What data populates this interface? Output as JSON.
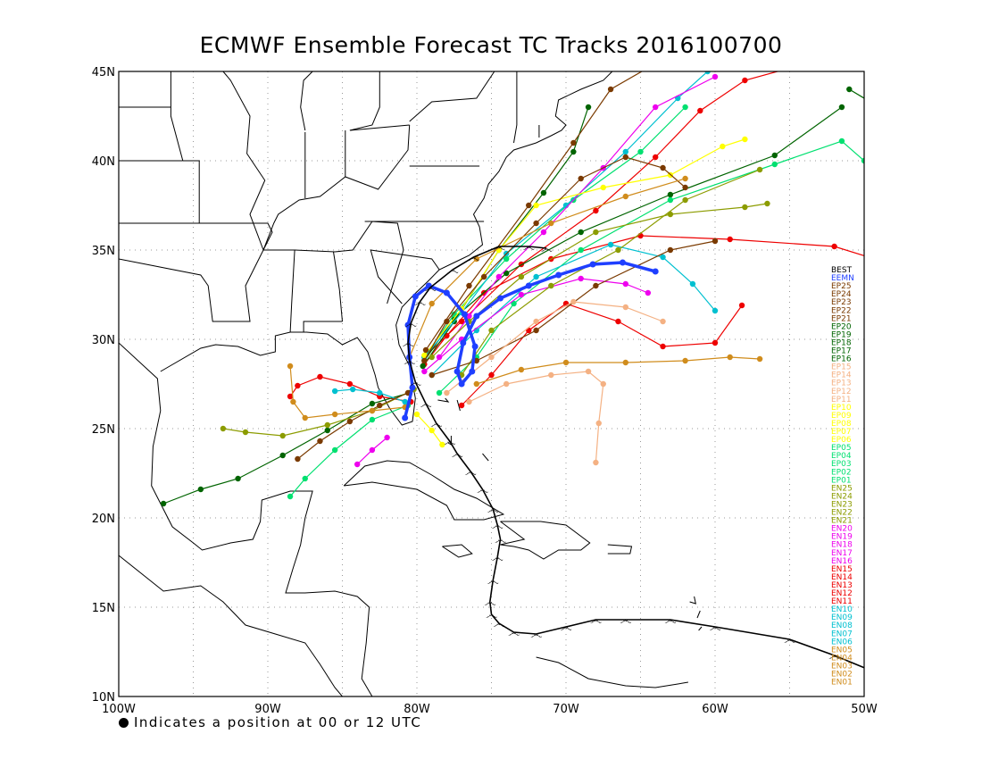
{
  "title": "ECMWF Ensemble Forecast TC Tracks 2016100700",
  "footnote": "Indicates a position at 00 or 12 UTC",
  "map": {
    "lon_range": [
      -100,
      -50
    ],
    "lat_range": [
      10,
      45
    ],
    "lat_labels": [
      "45N",
      "40N",
      "35N",
      "30N",
      "25N",
      "20N",
      "15N",
      "10N"
    ],
    "lon_labels": [
      "100W",
      "90W",
      "80W",
      "70W",
      "60W",
      "50W"
    ]
  },
  "legend": [
    {
      "label": "BEST",
      "color": "#000000"
    },
    {
      "label": "EEMN",
      "color": "#1f3fff"
    },
    {
      "label": "EP25",
      "color": "#7a3a00"
    },
    {
      "label": "EP24",
      "color": "#7a3a00"
    },
    {
      "label": "EP23",
      "color": "#7a3a00"
    },
    {
      "label": "EP22",
      "color": "#7a3a00"
    },
    {
      "label": "EP21",
      "color": "#7a3a00"
    },
    {
      "label": "EP20",
      "color": "#006400"
    },
    {
      "label": "EP19",
      "color": "#006400"
    },
    {
      "label": "EP18",
      "color": "#006400"
    },
    {
      "label": "EP17",
      "color": "#006400"
    },
    {
      "label": "EP16",
      "color": "#006400"
    },
    {
      "label": "EP15",
      "color": "#f4b183"
    },
    {
      "label": "EP14",
      "color": "#f4b183"
    },
    {
      "label": "EP13",
      "color": "#f4b183"
    },
    {
      "label": "EP12",
      "color": "#f4b183"
    },
    {
      "label": "EP11",
      "color": "#f4b183"
    },
    {
      "label": "EP10",
      "color": "#ffff00"
    },
    {
      "label": "EP09",
      "color": "#ffff00"
    },
    {
      "label": "EP08",
      "color": "#ffff00"
    },
    {
      "label": "EP07",
      "color": "#ffff00"
    },
    {
      "label": "EP06",
      "color": "#ffff00"
    },
    {
      "label": "EP05",
      "color": "#00e070"
    },
    {
      "label": "EP04",
      "color": "#00e070"
    },
    {
      "label": "EP03",
      "color": "#00e070"
    },
    {
      "label": "EP02",
      "color": "#00e070"
    },
    {
      "label": "EP01",
      "color": "#00e070"
    },
    {
      "label": "EN25",
      "color": "#8c9c00"
    },
    {
      "label": "EN24",
      "color": "#8c9c00"
    },
    {
      "label": "EN23",
      "color": "#8c9c00"
    },
    {
      "label": "EN22",
      "color": "#8c9c00"
    },
    {
      "label": "EN21",
      "color": "#8c9c00"
    },
    {
      "label": "EN20",
      "color": "#ee00ee"
    },
    {
      "label": "EN19",
      "color": "#ee00ee"
    },
    {
      "label": "EN18",
      "color": "#ee00ee"
    },
    {
      "label": "EN17",
      "color": "#ee00ee"
    },
    {
      "label": "EN16",
      "color": "#ee00ee"
    },
    {
      "label": "EN15",
      "color": "#ee0000"
    },
    {
      "label": "EN14",
      "color": "#ee0000"
    },
    {
      "label": "EN13",
      "color": "#ee0000"
    },
    {
      "label": "EN12",
      "color": "#ee0000"
    },
    {
      "label": "EN11",
      "color": "#ee0000"
    },
    {
      "label": "EN10",
      "color": "#00c0d0"
    },
    {
      "label": "EN09",
      "color": "#00c0d0"
    },
    {
      "label": "EN08",
      "color": "#00c0d0"
    },
    {
      "label": "EN07",
      "color": "#00c0d0"
    },
    {
      "label": "EN06",
      "color": "#00c0d0"
    },
    {
      "label": "EN05",
      "color": "#d08c1c"
    },
    {
      "label": "EN04",
      "color": "#d08c1c"
    },
    {
      "label": "EN03",
      "color": "#d08c1c"
    },
    {
      "label": "EN02",
      "color": "#d08c1c"
    },
    {
      "label": "EN01",
      "color": "#d08c1c"
    }
  ],
  "best_track": [
    [
      -48.5,
      11.1
    ],
    [
      -52,
      12.3
    ],
    [
      -55,
      13.2
    ],
    [
      -60,
      13.9
    ],
    [
      -63,
      14.3
    ],
    [
      -66,
      14.3
    ],
    [
      -68,
      14.3
    ],
    [
      -70,
      13.9
    ],
    [
      -72,
      13.5
    ],
    [
      -73.5,
      13.6
    ],
    [
      -74.5,
      14.1
    ],
    [
      -75,
      14.6
    ],
    [
      -75.1,
      15.3
    ],
    [
      -74.9,
      16.5
    ],
    [
      -74.6,
      17.8
    ],
    [
      -74.4,
      18.8
    ],
    [
      -74.6,
      19.6
    ],
    [
      -74.9,
      20.5
    ],
    [
      -75.6,
      21.6
    ],
    [
      -76.4,
      22.6
    ],
    [
      -77.3,
      23.6
    ],
    [
      -77.8,
      24.3
    ],
    [
      -78.7,
      25.3
    ],
    [
      -79.4,
      26.4
    ],
    [
      -80.1,
      27.6
    ],
    [
      -80.5,
      28.8
    ],
    [
      -80.6,
      29.8
    ],
    [
      -80.4,
      30.9
    ],
    [
      -79.8,
      32.1
    ],
    [
      -79.1,
      32.9
    ],
    [
      -77.6,
      33.9
    ],
    [
      -76.2,
      34.6
    ],
    [
      -74.5,
      35.2
    ],
    [
      -72.5,
      35.2
    ],
    [
      -71.3,
      35.1
    ]
  ],
  "mean_track": [
    [
      -80.8,
      25.6
    ],
    [
      -80.3,
      27.3
    ],
    [
      -80.5,
      29.0
    ],
    [
      -80.6,
      30.8
    ],
    [
      -80.1,
      32.4
    ],
    [
      -79.2,
      33.0
    ],
    [
      -78.0,
      32.6
    ],
    [
      -76.8,
      31.4
    ],
    [
      -76.1,
      29.6
    ],
    [
      -76.3,
      28.2
    ],
    [
      -77.0,
      27.5
    ],
    [
      -77.3,
      28.2
    ],
    [
      -76.9,
      29.8
    ],
    [
      -76.0,
      31.3
    ],
    [
      -74.4,
      32.3
    ],
    [
      -72.5,
      33.0
    ],
    [
      -70.5,
      33.6
    ],
    [
      -68.2,
      34.2
    ],
    [
      -66.2,
      34.3
    ],
    [
      -64.0,
      33.8
    ]
  ],
  "ensemble_tracks": [
    {
      "color": "#ee0000",
      "points": [
        [
          -79.5,
          28.6
        ],
        [
          -78,
          30.2
        ],
        [
          -75.5,
          32.6
        ],
        [
          -71,
          34.5
        ],
        [
          -65,
          35.8
        ],
        [
          -59,
          35.6
        ],
        [
          -52,
          35.2
        ],
        [
          -47,
          33.9
        ]
      ]
    },
    {
      "color": "#ee0000",
      "points": [
        [
          -79.5,
          29
        ],
        [
          -77,
          31
        ],
        [
          -73,
          34.2
        ],
        [
          -68,
          37.2
        ],
        [
          -64,
          40.2
        ],
        [
          -61,
          42.8
        ],
        [
          -58,
          44.5
        ],
        [
          -54.5,
          45.3
        ]
      ]
    },
    {
      "color": "#ee0000",
      "points": [
        [
          -80.4,
          26.5
        ],
        [
          -82.5,
          26.8
        ],
        [
          -84.5,
          27.5
        ],
        [
          -86.5,
          27.9
        ],
        [
          -88,
          27.4
        ],
        [
          -88.5,
          26.8
        ]
      ]
    },
    {
      "color": "#ee0000",
      "points": [
        [
          -77,
          26.3
        ],
        [
          -75,
          28
        ],
        [
          -72.5,
          30.5
        ],
        [
          -70,
          32
        ],
        [
          -66.5,
          31
        ],
        [
          -63.5,
          29.6
        ],
        [
          -60,
          29.8
        ],
        [
          -58.2,
          31.9
        ]
      ]
    },
    {
      "color": "#006400",
      "points": [
        [
          -79.5,
          28.8
        ],
        [
          -77.5,
          31.2
        ],
        [
          -74,
          33.7
        ],
        [
          -69,
          36
        ],
        [
          -63,
          38.1
        ],
        [
          -56,
          40.3
        ],
        [
          -51.5,
          43
        ]
      ]
    },
    {
      "color": "#006400",
      "points": [
        [
          -80.5,
          27
        ],
        [
          -83,
          26.4
        ],
        [
          -86,
          24.9
        ],
        [
          -89,
          23.5
        ],
        [
          -92,
          22.2
        ],
        [
          -94.5,
          21.6
        ],
        [
          -97,
          20.8
        ]
      ]
    },
    {
      "color": "#006400",
      "points": [
        [
          -79.6,
          28.5
        ],
        [
          -77.5,
          31
        ],
        [
          -74.5,
          35
        ],
        [
          -71.5,
          38.2
        ],
        [
          -69.5,
          40.5
        ],
        [
          -68.5,
          43
        ]
      ]
    },
    {
      "color": "#006400",
      "points": [
        [
          -51,
          44
        ],
        [
          -49,
          43
        ]
      ]
    },
    {
      "color": "#00e070",
      "points": [
        [
          -79.5,
          29
        ],
        [
          -77.5,
          31.4
        ],
        [
          -74,
          34.5
        ],
        [
          -69.5,
          37.8
        ],
        [
          -65,
          40.5
        ],
        [
          -62,
          43
        ]
      ]
    },
    {
      "color": "#00e070",
      "points": [
        [
          -78.5,
          27
        ],
        [
          -76,
          29
        ],
        [
          -73.5,
          32
        ],
        [
          -69,
          35
        ],
        [
          -63,
          37.8
        ],
        [
          -56,
          39.8
        ],
        [
          -51.5,
          41.1
        ],
        [
          -50,
          40
        ],
        [
          -48.5,
          39.2
        ]
      ]
    },
    {
      "color": "#00e070",
      "points": [
        [
          -80.6,
          26.3
        ],
        [
          -83,
          25.5
        ],
        [
          -85.5,
          23.8
        ],
        [
          -87.5,
          22.2
        ],
        [
          -88.5,
          21.2
        ]
      ]
    },
    {
      "color": "#00c0d0",
      "points": [
        [
          -79.5,
          29
        ],
        [
          -77,
          31.5
        ],
        [
          -74,
          34.8
        ],
        [
          -70,
          37.5
        ],
        [
          -66,
          40.5
        ],
        [
          -62.5,
          43.5
        ],
        [
          -60.5,
          45
        ]
      ]
    },
    {
      "color": "#00c0d0",
      "points": [
        [
          -79,
          28
        ],
        [
          -76,
          30.5
        ],
        [
          -72,
          33.5
        ],
        [
          -67,
          35.3
        ],
        [
          -63.5,
          34.6
        ],
        [
          -61.5,
          33.1
        ],
        [
          -60,
          31.6
        ]
      ]
    },
    {
      "color": "#00c0d0",
      "points": [
        [
          -80.8,
          26.5
        ],
        [
          -82.5,
          27
        ],
        [
          -84.3,
          27.2
        ],
        [
          -85.5,
          27.1
        ]
      ]
    },
    {
      "color": "#ee00ee",
      "points": [
        [
          -78.5,
          29
        ],
        [
          -76.5,
          31.3
        ],
        [
          -74.5,
          33.5
        ],
        [
          -71.5,
          36
        ],
        [
          -67.5,
          39.6
        ],
        [
          -64,
          43
        ],
        [
          -60,
          44.7
        ]
      ]
    },
    {
      "color": "#ee00ee",
      "points": [
        [
          -79.5,
          28.2
        ],
        [
          -77,
          30
        ],
        [
          -73,
          32.5
        ],
        [
          -69,
          33.4
        ],
        [
          -66,
          33.1
        ],
        [
          -64.5,
          32.6
        ]
      ]
    },
    {
      "color": "#ee00ee",
      "points": [
        [
          -82,
          24.5
        ],
        [
          -83,
          23.8
        ],
        [
          -84,
          23
        ]
      ]
    },
    {
      "color": "#ffff00",
      "points": [
        [
          -79.5,
          29.1
        ],
        [
          -77,
          31.7
        ],
        [
          -74.5,
          35
        ],
        [
          -72,
          37.5
        ],
        [
          -67.5,
          38.5
        ],
        [
          -63,
          39.2
        ],
        [
          -59.5,
          40.8
        ],
        [
          -58,
          41.2
        ]
      ]
    },
    {
      "color": "#ffff00",
      "points": [
        [
          -80,
          25.8
        ],
        [
          -79,
          24.9
        ],
        [
          -78.3,
          24.1
        ]
      ]
    },
    {
      "color": "#8c9c00",
      "points": [
        [
          -80.2,
          27.2
        ],
        [
          -83,
          26
        ],
        [
          -86,
          25.2
        ],
        [
          -89,
          24.6
        ],
        [
          -91.5,
          24.8
        ],
        [
          -93,
          25
        ]
      ]
    },
    {
      "color": "#8c9c00",
      "points": [
        [
          -79,
          29
        ],
        [
          -76.5,
          31
        ],
        [
          -73,
          33.5
        ],
        [
          -68,
          36
        ],
        [
          -63,
          37
        ],
        [
          -58,
          37.4
        ],
        [
          -56.5,
          37.6
        ]
      ]
    },
    {
      "color": "#8c9c00",
      "points": [
        [
          -77,
          28
        ],
        [
          -75,
          30.5
        ],
        [
          -71,
          33
        ],
        [
          -66.5,
          35
        ],
        [
          -62,
          37.8
        ],
        [
          -57,
          39.5
        ]
      ]
    },
    {
      "color": "#7a3a00",
      "points": [
        [
          -79.5,
          28.8
        ],
        [
          -78,
          31
        ],
        [
          -75.5,
          33.5
        ],
        [
          -72,
          36.5
        ],
        [
          -69,
          39
        ],
        [
          -66,
          40.2
        ],
        [
          -63.5,
          39.6
        ],
        [
          -62,
          38.5
        ]
      ]
    },
    {
      "color": "#7a3a00",
      "points": [
        [
          -79.4,
          29.4
        ],
        [
          -76.5,
          33
        ],
        [
          -72.5,
          37.5
        ],
        [
          -69.5,
          41
        ],
        [
          -67,
          44
        ],
        [
          -64.5,
          45.2
        ]
      ]
    },
    {
      "color": "#7a3a00",
      "points": [
        [
          -79,
          28
        ],
        [
          -76,
          28.8
        ],
        [
          -72,
          30.5
        ],
        [
          -68,
          33
        ],
        [
          -63,
          35
        ],
        [
          -60,
          35.5
        ]
      ]
    },
    {
      "color": "#7a3a00",
      "points": [
        [
          -80.6,
          27
        ],
        [
          -82.5,
          26.3
        ],
        [
          -84.5,
          25.4
        ],
        [
          -86.5,
          24.3
        ],
        [
          -88,
          23.3
        ]
      ]
    },
    {
      "color": "#f4b183",
      "points": [
        [
          -76.5,
          26.5
        ],
        [
          -74,
          27.5
        ],
        [
          -71,
          28
        ],
        [
          -68.5,
          28.2
        ],
        [
          -67.5,
          27.5
        ],
        [
          -67.8,
          25.3
        ],
        [
          -68,
          23.1
        ]
      ]
    },
    {
      "color": "#f4b183",
      "points": [
        [
          -78,
          27
        ],
        [
          -75,
          29
        ],
        [
          -72,
          31
        ],
        [
          -69.5,
          32.1
        ],
        [
          -66,
          31.8
        ],
        [
          -63.5,
          31
        ]
      ]
    },
    {
      "color": "#d08c1c",
      "points": [
        [
          -76,
          27.5
        ],
        [
          -73,
          28.3
        ],
        [
          -70,
          28.7
        ],
        [
          -66,
          28.7
        ],
        [
          -62,
          28.8
        ],
        [
          -59,
          29
        ],
        [
          -57,
          28.9
        ]
      ]
    },
    {
      "color": "#d08c1c",
      "points": [
        [
          -80.8,
          26.2
        ],
        [
          -83,
          26
        ],
        [
          -85.5,
          25.8
        ],
        [
          -87.5,
          25.6
        ],
        [
          -88.3,
          26.5
        ],
        [
          -88.5,
          28.5
        ]
      ]
    },
    {
      "color": "#d08c1c",
      "points": [
        [
          -80.5,
          29
        ],
        [
          -79,
          32
        ],
        [
          -76,
          34.5
        ],
        [
          -71,
          36.5
        ],
        [
          -66,
          38
        ],
        [
          -62,
          39
        ]
      ]
    }
  ]
}
